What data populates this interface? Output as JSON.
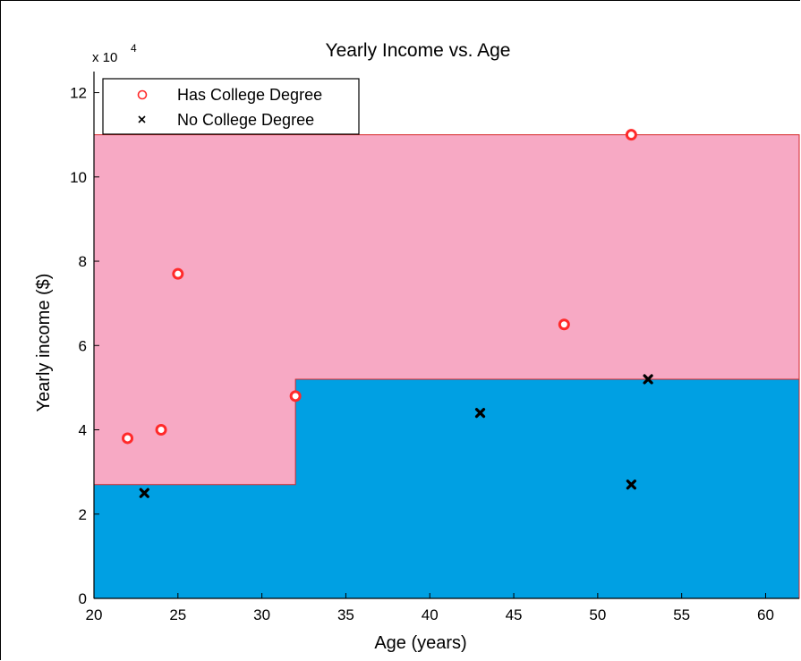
{
  "chart_data": {
    "type": "scatter",
    "title": "Yearly Income vs. Age",
    "xlabel": "Age (years)",
    "ylabel": "Yearly income ($)",
    "y_multiplier_label": "x 10",
    "y_multiplier_exponent": "4",
    "xlim": [
      20,
      62
    ],
    "ylim": [
      0,
      125000
    ],
    "xticks": [
      20,
      25,
      30,
      35,
      40,
      45,
      50,
      55,
      60
    ],
    "yticks": [
      0,
      20000,
      40000,
      60000,
      80000,
      100000,
      120000
    ],
    "ytick_labels": [
      "0",
      "2",
      "4",
      "6",
      "8",
      "10",
      "12"
    ],
    "grid": false,
    "legend_position": "top-left",
    "regions": [
      {
        "label": "College Degree region",
        "color": "#f7a9c4",
        "x_from": 20,
        "x_to": 62,
        "y_from": 0,
        "y_to": 110000
      },
      {
        "label": "No College Degree region",
        "color": "#00a0e3",
        "steps": [
          [
            20,
            27000
          ],
          [
            32,
            27000
          ],
          [
            32,
            52000
          ],
          [
            62,
            52000
          ]
        ]
      }
    ],
    "series": [
      {
        "name": "Has College Degree",
        "marker": "circle",
        "color": "#ff2a2a",
        "points": [
          [
            22,
            38000
          ],
          [
            24,
            40000
          ],
          [
            25,
            77000
          ],
          [
            32,
            48000
          ],
          [
            48,
            65000
          ],
          [
            52,
            110000
          ]
        ]
      },
      {
        "name": "No College Degree",
        "marker": "x",
        "color": "#000000",
        "points": [
          [
            23,
            25000
          ],
          [
            43,
            44000
          ],
          [
            52,
            27000
          ],
          [
            53,
            52000
          ]
        ]
      }
    ]
  }
}
